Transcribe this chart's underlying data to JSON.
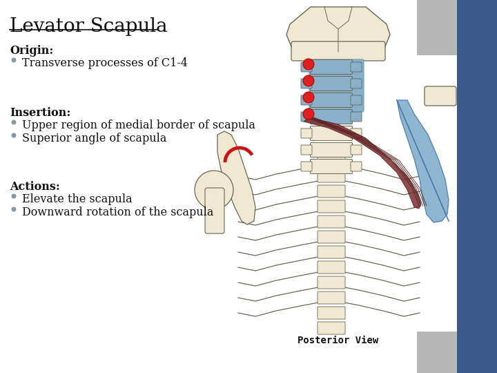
{
  "title": "Levator Scapula",
  "background_color": "#ffffff",
  "right_stripe_color": "#3a5a8c",
  "grey_corner_color": "#b8b8b8",
  "sections": [
    {
      "header": "Origin:",
      "bullets": [
        "Transverse processes of C1-4"
      ]
    },
    {
      "header": "Insertion:",
      "bullets": [
        "Upper region of medial border of scapula",
        "Superior angle of scapula"
      ]
    },
    {
      "header": "Actions:",
      "bullets": [
        "Elevate the scapula",
        "Downward rotation of the scapula"
      ]
    }
  ],
  "title_fontsize": 20,
  "header_fontsize": 11.5,
  "bullet_fontsize": 11.5,
  "text_color": "#111111",
  "bullet_color": "#8899aa",
  "posterior_label": "Posterior View",
  "bone_color": "#f0e8d0",
  "bone_edge": "#666655",
  "neck_highlight": "#8ab0cc",
  "scapula_color": "#7aaac8",
  "muscle_color": "#7a3030",
  "red_dot_color": "#dd2020",
  "red_arc_color": "#cc1111"
}
